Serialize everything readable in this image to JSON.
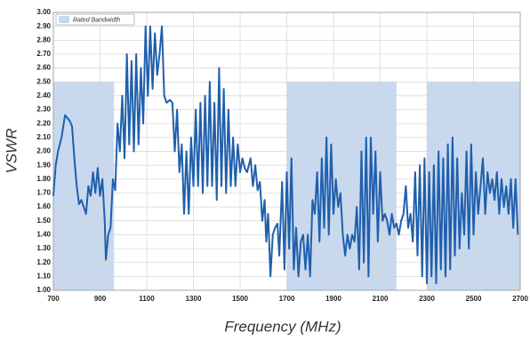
{
  "chart_data": {
    "type": "line",
    "xlabel": "Frequency (MHz)",
    "ylabel": "VSWR",
    "xlim": [
      700,
      2700
    ],
    "xticks": [
      700,
      900,
      1100,
      1300,
      1500,
      1700,
      1900,
      2100,
      2300,
      2500,
      2700
    ],
    "ylim": [
      1,
      3
    ],
    "yticks": [
      {
        "value": 1,
        "label": "1.00"
      },
      {
        "value": 1.1,
        "label": "1.10"
      },
      {
        "value": 1.2,
        "label": "1.20"
      },
      {
        "value": 1.3,
        "label": "1.30"
      },
      {
        "value": 1.4,
        "label": "1.40"
      },
      {
        "value": 1.5,
        "label": "1.50"
      },
      {
        "value": 1.6,
        "label": "1.60"
      },
      {
        "value": 1.7,
        "label": "1.70"
      },
      {
        "value": 1.8,
        "label": "1.80"
      },
      {
        "value": 1.9,
        "label": "1.90"
      },
      {
        "value": 2,
        "label": "2.00"
      },
      {
        "value": 2.1,
        "label": "2.10"
      },
      {
        "value": 2.2,
        "label": "2.20"
      },
      {
        "value": 2.3,
        "label": "2.30"
      },
      {
        "value": 2.4,
        "label": "2.40"
      },
      {
        "value": 2.5,
        "label": "2.50"
      },
      {
        "value": 2.6,
        "label": "2.60"
      },
      {
        "value": 2.7,
        "label": "2.70"
      },
      {
        "value": 2.8,
        "label": "2.80"
      },
      {
        "value": 2.9,
        "label": "2.90"
      },
      {
        "value": 3,
        "label": "3.00"
      }
    ],
    "grid": true,
    "legend": "upper left",
    "bands": {
      "name": "Rated Bandwidth",
      "color": "#c8d9ef",
      "ymax": 2.5,
      "ranges": [
        [
          700,
          960
        ],
        [
          1700,
          2170
        ],
        [
          2300,
          2700
        ]
      ]
    },
    "color": "#1f5fad",
    "x": [
      700,
      710,
      720,
      735,
      750,
      770,
      780,
      790,
      800,
      810,
      820,
      830,
      840,
      850,
      860,
      870,
      880,
      890,
      900,
      910,
      920,
      925,
      935,
      945,
      955,
      965,
      975,
      985,
      995,
      1005,
      1015,
      1025,
      1035,
      1045,
      1055,
      1065,
      1075,
      1085,
      1095,
      1105,
      1115,
      1125,
      1135,
      1145,
      1155,
      1165,
      1175,
      1185,
      1200,
      1210,
      1220,
      1230,
      1240,
      1250,
      1260,
      1270,
      1280,
      1290,
      1300,
      1310,
      1320,
      1330,
      1340,
      1350,
      1360,
      1370,
      1380,
      1390,
      1400,
      1410,
      1420,
      1430,
      1440,
      1450,
      1460,
      1470,
      1480,
      1490,
      1500,
      1510,
      1520,
      1530,
      1545,
      1555,
      1565,
      1575,
      1585,
      1595,
      1605,
      1612,
      1620,
      1630,
      1640,
      1650,
      1660,
      1668,
      1680,
      1690,
      1700,
      1710,
      1720,
      1730,
      1740,
      1750,
      1760,
      1770,
      1780,
      1790,
      1800,
      1810,
      1820,
      1830,
      1840,
      1850,
      1860,
      1870,
      1880,
      1890,
      1900,
      1910,
      1920,
      1930,
      1940,
      1950,
      1960,
      1970,
      1980,
      1990,
      2000,
      2010,
      2020,
      2030,
      2040,
      2050,
      2060,
      2070,
      2080,
      2090,
      2100,
      2110,
      2120,
      2130,
      2140,
      2150,
      2160,
      2170,
      2180,
      2190,
      2200,
      2210,
      2220,
      2230,
      2240,
      2250,
      2260,
      2270,
      2280,
      2290,
      2300,
      2310,
      2320,
      2330,
      2340,
      2350,
      2360,
      2370,
      2380,
      2390,
      2400,
      2410,
      2420,
      2430,
      2440,
      2450,
      2460,
      2470,
      2480,
      2490,
      2500,
      2510,
      2520,
      2530,
      2540,
      2550,
      2560,
      2570,
      2580,
      2590,
      2600,
      2610,
      2620,
      2630,
      2640,
      2650,
      2660,
      2670,
      2680,
      2690
    ],
    "values": [
      1.68,
      1.9,
      2.0,
      2.1,
      2.26,
      2.22,
      2.18,
      1.95,
      1.75,
      1.62,
      1.65,
      1.6,
      1.55,
      1.75,
      1.68,
      1.85,
      1.7,
      1.88,
      1.68,
      1.8,
      1.5,
      1.22,
      1.4,
      1.45,
      1.8,
      1.72,
      2.2,
      2.0,
      2.4,
      1.95,
      2.7,
      2.05,
      2.65,
      2.0,
      2.7,
      2.05,
      2.6,
      2.2,
      2.9,
      2.4,
      2.9,
      2.45,
      2.85,
      2.55,
      2.7,
      2.9,
      2.4,
      2.35,
      2.37,
      2.35,
      2.0,
      2.3,
      1.85,
      2.05,
      1.55,
      2.0,
      1.55,
      2.1,
      1.75,
      2.3,
      1.75,
      2.35,
      1.7,
      2.4,
      1.75,
      2.5,
      1.75,
      2.35,
      1.65,
      2.6,
      1.75,
      2.45,
      1.7,
      2.3,
      1.75,
      2.1,
      1.75,
      2.05,
      1.85,
      1.95,
      1.88,
      1.85,
      1.95,
      1.75,
      1.9,
      1.72,
      1.78,
      1.5,
      1.65,
      1.35,
      1.55,
      1.1,
      1.4,
      1.45,
      1.48,
      1.25,
      1.78,
      1.15,
      1.85,
      1.3,
      1.95,
      1.15,
      1.45,
      1.1,
      1.35,
      1.4,
      1.15,
      1.4,
      1.1,
      1.65,
      1.55,
      1.85,
      1.35,
      1.95,
      1.45,
      2.1,
      1.4,
      2.05,
      1.55,
      1.8,
      1.6,
      1.7,
      1.4,
      1.25,
      1.4,
      1.3,
      1.4,
      1.35,
      1.6,
      1.15,
      2.0,
      1.2,
      2.1,
      1.1,
      2.1,
      1.55,
      2.0,
      1.35,
      1.85,
      1.5,
      1.55,
      1.5,
      1.4,
      1.55,
      1.45,
      1.48,
      1.4,
      1.5,
      1.55,
      1.75,
      1.45,
      1.55,
      1.35,
      1.85,
      1.25,
      1.9,
      1.1,
      1.95,
      1.05,
      1.85,
      1.1,
      1.9,
      1.05,
      2.0,
      1.15,
      1.95,
      1.1,
      2.05,
      1.15,
      2.1,
      1.25,
      1.95,
      1.3,
      1.7,
      1.4,
      2.0,
      1.3,
      2.05,
      1.4,
      1.85,
      1.55,
      1.75,
      1.95,
      1.55,
      1.85,
      1.7,
      1.8,
      1.65,
      1.85,
      1.55,
      1.8,
      1.6,
      1.75,
      1.55,
      1.8,
      1.45,
      1.8,
      1.4
    ]
  }
}
